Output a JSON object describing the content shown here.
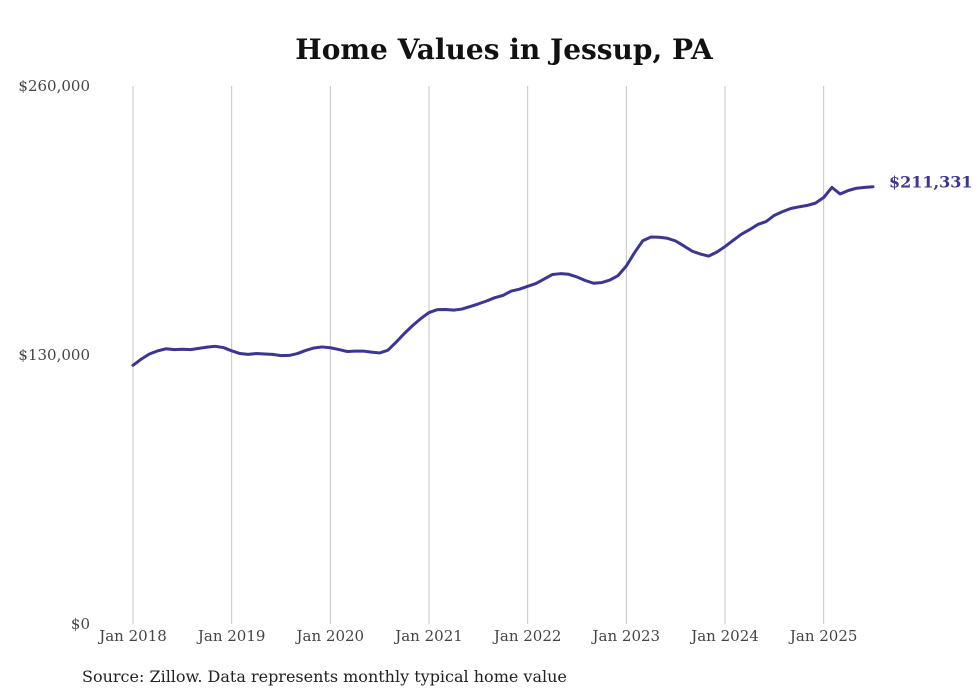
{
  "chart_data": {
    "type": "line",
    "title": "Home Values in Jessup, PA",
    "xlabel": "",
    "ylabel": "",
    "ylim": [
      0,
      260000
    ],
    "xlim": [
      "2018-01",
      "2025-07"
    ],
    "y_ticks": [
      {
        "value": 0,
        "label": "$0"
      },
      {
        "value": 130000,
        "label": "$130,000"
      },
      {
        "value": 260000,
        "label": "$260,000"
      }
    ],
    "x_ticks": [
      {
        "value": "2018-01",
        "label": "Jan 2018"
      },
      {
        "value": "2019-01",
        "label": "Jan 2019"
      },
      {
        "value": "2020-01",
        "label": "Jan 2020"
      },
      {
        "value": "2021-01",
        "label": "Jan 2021"
      },
      {
        "value": "2022-01",
        "label": "Jan 2022"
      },
      {
        "value": "2023-01",
        "label": "Jan 2023"
      },
      {
        "value": "2024-01",
        "label": "Jan 2024"
      },
      {
        "value": "2025-01",
        "label": "Jan 2025"
      }
    ],
    "grid": "vertical",
    "series": [
      {
        "color": "#3b3596",
        "end_label": "$211,331",
        "x": [
          "2018-01",
          "2018-02",
          "2018-03",
          "2018-04",
          "2018-05",
          "2018-06",
          "2018-07",
          "2018-08",
          "2018-09",
          "2018-10",
          "2018-11",
          "2018-12",
          "2019-01",
          "2019-02",
          "2019-03",
          "2019-04",
          "2019-05",
          "2019-06",
          "2019-07",
          "2019-08",
          "2019-09",
          "2019-10",
          "2019-11",
          "2019-12",
          "2020-01",
          "2020-02",
          "2020-03",
          "2020-04",
          "2020-05",
          "2020-06",
          "2020-07",
          "2020-08",
          "2020-09",
          "2020-10",
          "2020-11",
          "2020-12",
          "2021-01",
          "2021-02",
          "2021-03",
          "2021-04",
          "2021-05",
          "2021-06",
          "2021-07",
          "2021-08",
          "2021-09",
          "2021-10",
          "2021-11",
          "2021-12",
          "2022-01",
          "2022-02",
          "2022-03",
          "2022-04",
          "2022-05",
          "2022-06",
          "2022-07",
          "2022-08",
          "2022-09",
          "2022-10",
          "2022-11",
          "2022-12",
          "2023-01",
          "2023-02",
          "2023-03",
          "2023-04",
          "2023-05",
          "2023-06",
          "2023-07",
          "2023-08",
          "2023-09",
          "2023-10",
          "2023-11",
          "2023-12",
          "2024-01",
          "2024-02",
          "2024-03",
          "2024-04",
          "2024-05",
          "2024-06",
          "2024-07",
          "2024-08",
          "2024-09",
          "2024-10",
          "2024-11",
          "2024-12",
          "2025-01",
          "2025-02",
          "2025-03",
          "2025-04",
          "2025-05",
          "2025-06",
          "2025-07"
        ],
        "values": [
          125000,
          128000,
          130500,
          132000,
          133000,
          132600,
          132800,
          132600,
          133200,
          133800,
          134200,
          133600,
          132000,
          130700,
          130300,
          130700,
          130500,
          130300,
          129700,
          129800,
          130700,
          132200,
          133400,
          133900,
          133500,
          132700,
          131700,
          131900,
          131900,
          131400,
          131000,
          132300,
          136200,
          140400,
          144200,
          147600,
          150500,
          151900,
          152000,
          151700,
          152200,
          153400,
          154700,
          156100,
          157700,
          158800,
          160900,
          161800,
          163200,
          164500,
          166700,
          168900,
          169300,
          169000,
          167700,
          166000,
          164700,
          165000,
          166200,
          168400,
          173000,
          179500,
          185200,
          187000,
          186900,
          186400,
          185100,
          182700,
          180200,
          178800,
          177800,
          179700,
          182400,
          185400,
          188400,
          190600,
          193100,
          194500,
          197500,
          199300,
          200800,
          201600,
          202300,
          203400,
          206100,
          211000,
          207800,
          209500,
          210600,
          211000,
          211331
        ]
      }
    ]
  },
  "footer": {
    "source": "Source: Zillow. Data represents monthly typical home value"
  }
}
